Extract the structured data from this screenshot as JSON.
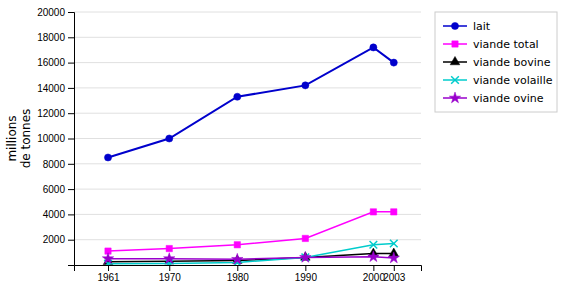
{
  "chart_data": {
    "type": "line",
    "y_label": "millions\nde tonnes",
    "x": [
      1961,
      1970,
      1980,
      1990,
      2000,
      2003
    ],
    "series": [
      {
        "name": "lait",
        "color": "#0000CC",
        "marker": "circle",
        "values": [
          8500,
          10000,
          13300,
          14200,
          17200,
          16000
        ]
      },
      {
        "name": "viande total",
        "color": "#FF00FF",
        "marker": "square",
        "values": [
          1100,
          1300,
          1600,
          2100,
          4200,
          4200
        ]
      },
      {
        "name": "viande bovine",
        "color": "#000000",
        "marker": "triangle",
        "values": [
          250,
          300,
          350,
          600,
          900,
          900
        ]
      },
      {
        "name": "viande volaille",
        "color": "#00CCCC",
        "marker": "x",
        "values": [
          100,
          120,
          200,
          600,
          1600,
          1700
        ]
      },
      {
        "name": "viande ovine",
        "color": "#9900CC",
        "marker": "star",
        "values": [
          500,
          500,
          450,
          600,
          650,
          550
        ]
      }
    ],
    "xlim": [
      1956,
      2007
    ],
    "xticks": [
      1961,
      1970,
      1980,
      1990,
      2000,
      2003
    ],
    "ylim": [
      0,
      20000
    ],
    "yticks": [
      2000,
      4000,
      6000,
      8000,
      10000,
      12000,
      14000,
      16000,
      18000,
      20000
    ],
    "grid": true,
    "legend": "right"
  }
}
